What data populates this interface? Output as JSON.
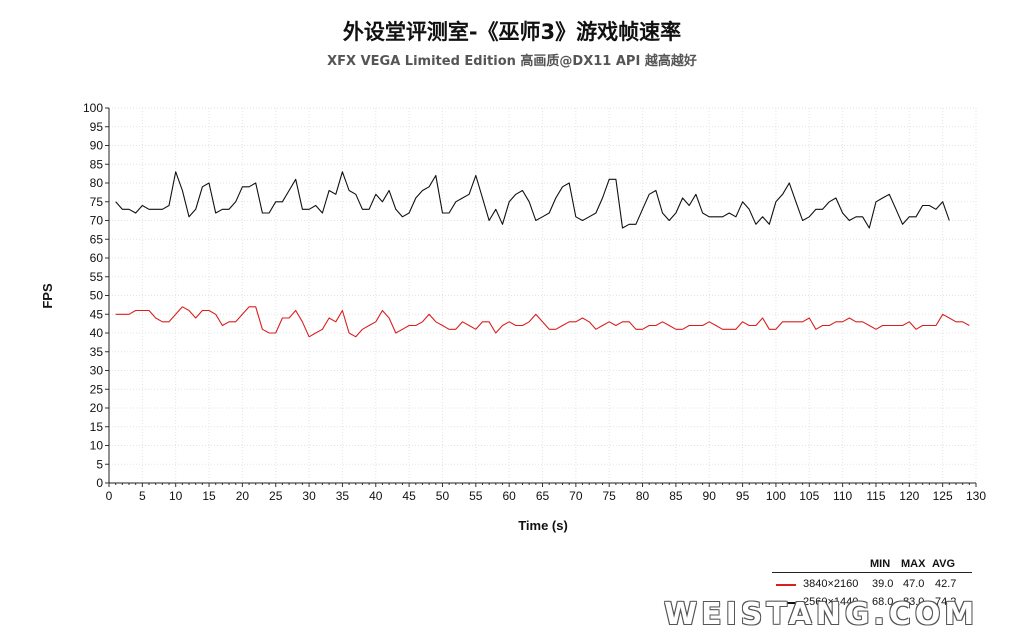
{
  "chart_data": {
    "type": "line",
    "title": "外设堂评测室-《巫师3》游戏帧速率",
    "subtitle": "XFX VEGA Limited Edition 高画质@DX11 API 越高越好",
    "xlabel": "Time (s)",
    "ylabel": "FPS",
    "xlim": [
      0,
      130
    ],
    "ylim": [
      0,
      100
    ],
    "x_ticks": [
      0,
      5,
      10,
      15,
      20,
      25,
      30,
      35,
      40,
      45,
      50,
      55,
      60,
      65,
      70,
      75,
      80,
      85,
      90,
      95,
      100,
      105,
      110,
      115,
      120,
      125,
      130
    ],
    "y_ticks": [
      0,
      5,
      10,
      15,
      20,
      25,
      30,
      35,
      40,
      45,
      50,
      55,
      60,
      65,
      70,
      75,
      80,
      85,
      90,
      95,
      100
    ],
    "grid": true,
    "legend_position": "bottom-right",
    "series": [
      {
        "name": "3840×2160",
        "color": "#d9201f",
        "x_start": 1,
        "values": [
          45,
          45,
          45,
          46,
          46,
          46,
          44,
          43,
          43,
          45,
          47,
          46,
          44,
          46,
          46,
          45,
          42,
          43,
          43,
          45,
          47,
          47,
          41,
          40,
          40,
          44,
          44,
          46,
          43,
          39,
          40,
          41,
          44,
          43,
          46,
          40,
          39,
          41,
          42,
          43,
          46,
          44,
          40,
          41,
          42,
          42,
          43,
          45,
          43,
          42,
          41,
          41,
          43,
          42,
          41,
          43,
          43,
          40,
          42,
          43,
          42,
          42,
          43,
          45,
          43,
          41,
          41,
          42,
          43,
          43,
          44,
          43,
          41,
          42,
          43,
          42,
          43,
          43,
          41,
          41,
          42,
          42,
          43,
          42,
          41,
          41,
          42,
          42,
          42,
          43,
          42,
          41,
          41,
          41,
          43,
          42,
          42,
          44,
          41,
          41,
          43,
          43,
          43,
          43,
          44,
          41,
          42,
          42,
          43,
          43,
          44,
          43,
          43,
          42,
          41,
          42,
          42,
          42,
          42,
          43,
          41,
          42,
          42,
          42,
          45,
          44,
          43,
          43,
          42
        ]
      },
      {
        "name": "2560×1440",
        "color": "#111111",
        "x_start": 1,
        "values": [
          75,
          73,
          73,
          72,
          74,
          73,
          73,
          73,
          74,
          83,
          78,
          71,
          73,
          79,
          80,
          72,
          73,
          73,
          75,
          79,
          79,
          80,
          72,
          72,
          75,
          75,
          78,
          81,
          73,
          73,
          74,
          72,
          78,
          77,
          83,
          78,
          77,
          73,
          73,
          77,
          75,
          78,
          73,
          71,
          72,
          76,
          78,
          79,
          82,
          72,
          72,
          75,
          76,
          77,
          82,
          76,
          70,
          73,
          69,
          75,
          77,
          78,
          75,
          70,
          71,
          72,
          76,
          79,
          80,
          71,
          70,
          71,
          72,
          76,
          81,
          81,
          68,
          69,
          69,
          73,
          77,
          78,
          72,
          70,
          72,
          76,
          74,
          77,
          72,
          71,
          71,
          71,
          72,
          71,
          75,
          73,
          69,
          71,
          69,
          75,
          77,
          80,
          75,
          70,
          71,
          73,
          73,
          75,
          76,
          72,
          70,
          71,
          71,
          68,
          75,
          76,
          77,
          73,
          69,
          71,
          71,
          74,
          74,
          73,
          75,
          70
        ]
      }
    ],
    "stats_table": {
      "headers": [
        "MIN",
        "MAX",
        "AVG"
      ],
      "rows": [
        {
          "label": "3840×2160",
          "min": "39.0",
          "max": "47.0",
          "avg": "42.7",
          "color": "#d9201f"
        },
        {
          "label": "2560×1440",
          "min": "68.0",
          "max": "83.0",
          "avg": "74.2",
          "color": "#111111"
        }
      ]
    }
  },
  "watermark": "WEISTANG.COM"
}
